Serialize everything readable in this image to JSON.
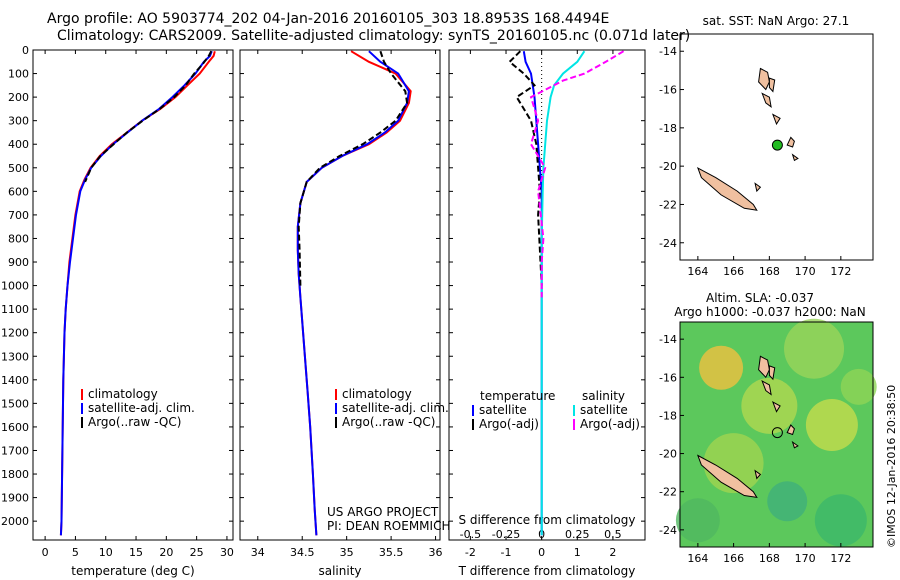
{
  "header": {
    "line1": "Argo profile: AO 5903774_202 04-Jan-2016 20160105_303 18.8953S 168.4494E",
    "line2": "Climatology: CARS2009. Satellite-adjusted climatology: synTS_20160105.nc (0.071d later)"
  },
  "stamp": "©IMOS 12-Jan-2016 20:38:50",
  "colors": {
    "climatology": "#ff0000",
    "satellite": "#0000ff",
    "argo": "#000000",
    "sat_salinity": "#00e5e5",
    "argo_adj": "#ff00ff",
    "land": "#f0c0a0",
    "float": "#22bb22"
  },
  "depth_ticks": [
    "0",
    "100",
    "200",
    "300",
    "400",
    "500",
    "600",
    "700",
    "800",
    "900",
    "1000",
    "1100",
    "1200",
    "1300",
    "1400",
    "1500",
    "1600",
    "1700",
    "1800",
    "1900",
    "2000"
  ],
  "chart_data": [
    {
      "type": "line",
      "xlabel": "temperature (deg C)",
      "xlim": [
        -2,
        31
      ],
      "ylim": [
        2080,
        0
      ],
      "xticks": [
        "0",
        "5",
        "10",
        "15",
        "20",
        "25",
        "30"
      ],
      "legend": [
        "climatology",
        "satellite-adj. clim.",
        "Argo(..raw -QC)"
      ],
      "series": [
        {
          "name": "climatology",
          "x": [
            28.0,
            27.8,
            27.0,
            25.5,
            23.5,
            21.5,
            19.0,
            16.0,
            13.5,
            11.0,
            9.0,
            7.5,
            6.5,
            5.7,
            5.0,
            4.5,
            4.0,
            3.7,
            3.4,
            3.2,
            3.0,
            2.9,
            2.8,
            2.7,
            2.6
          ],
          "y": [
            5,
            25,
            50,
            100,
            150,
            200,
            250,
            300,
            350,
            400,
            450,
            500,
            550,
            600,
            700,
            800,
            900,
            1000,
            1100,
            1200,
            1400,
            1600,
            1800,
            2000,
            2060
          ]
        },
        {
          "name": "satellite-adj. clim.",
          "x": [
            27.5,
            27.2,
            26.2,
            24.8,
            23.0,
            21.0,
            18.8,
            16.0,
            13.6,
            11.2,
            9.2,
            7.6,
            6.6,
            5.8,
            5.1,
            4.6,
            4.1,
            3.7,
            3.4,
            3.2,
            3.0,
            2.9,
            2.8,
            2.7,
            2.6
          ],
          "y": [
            5,
            25,
            50,
            100,
            150,
            200,
            250,
            300,
            350,
            400,
            450,
            500,
            550,
            600,
            700,
            800,
            900,
            1000,
            1100,
            1200,
            1400,
            1600,
            1800,
            2000,
            2060
          ]
        },
        {
          "name": "Argo(..raw -QC)",
          "x": [
            27.4,
            27.0,
            26.0,
            24.6,
            23.2,
            21.3,
            18.9,
            16.1,
            13.5,
            11.3,
            9.1,
            7.6,
            6.6
          ],
          "y": [
            5,
            25,
            60,
            100,
            150,
            200,
            250,
            300,
            350,
            400,
            450,
            500,
            560
          ]
        }
      ]
    },
    {
      "type": "line",
      "xlabel": "salinity",
      "xlim": [
        33.8,
        36.05
      ],
      "ylim": [
        2080,
        0
      ],
      "xticks": [
        "34",
        "34.5",
        "35",
        "35.5",
        "36"
      ],
      "legend": [
        "climatology",
        "satellite-adj. clim.",
        "Argo(..raw -QC)"
      ],
      "series": [
        {
          "name": "climatology",
          "x": [
            35.05,
            35.25,
            35.55,
            35.72,
            35.7,
            35.6,
            35.45,
            35.25,
            34.95,
            34.72,
            34.55,
            34.48,
            34.45,
            34.45,
            34.46,
            34.48,
            34.5,
            34.53,
            34.56,
            34.59,
            34.62,
            34.64,
            34.66
          ],
          "y": [
            5,
            50,
            100,
            175,
            225,
            300,
            350,
            400,
            450,
            500,
            560,
            650,
            750,
            850,
            950,
            1050,
            1150,
            1300,
            1450,
            1600,
            1800,
            1950,
            2060
          ]
        },
        {
          "name": "satellite-adj. clim.",
          "x": [
            35.25,
            35.38,
            35.58,
            35.7,
            35.68,
            35.58,
            35.43,
            35.23,
            34.95,
            34.72,
            34.55,
            34.48,
            34.45,
            34.45,
            34.46,
            34.48,
            34.5,
            34.53,
            34.56,
            34.59,
            34.62,
            34.64,
            34.66
          ],
          "y": [
            5,
            50,
            100,
            175,
            225,
            300,
            350,
            400,
            450,
            500,
            560,
            650,
            750,
            850,
            950,
            1050,
            1150,
            1300,
            1450,
            1600,
            1800,
            1950,
            2060
          ]
        },
        {
          "name": "Argo(..raw -QC)",
          "x": [
            35.38,
            35.42,
            35.5,
            35.66,
            35.68,
            35.55,
            35.38,
            35.18,
            34.92,
            34.7,
            34.55,
            34.48,
            34.46,
            34.47,
            34.48
          ],
          "y": [
            5,
            50,
            100,
            175,
            225,
            300,
            350,
            400,
            450,
            500,
            560,
            650,
            750,
            850,
            1000
          ]
        }
      ]
    },
    {
      "type": "line",
      "xlabel": "T difference from climatology",
      "xlabel2": "S difference from climatology",
      "xlim": [
        -2.6,
        2.9
      ],
      "ylim": [
        2080,
        0
      ],
      "xticks": [
        "-2",
        "-1",
        "0",
        "1",
        "2"
      ],
      "xticks2": [
        "-0.5",
        "-0.25",
        "0",
        "0.25",
        "0.5"
      ],
      "legend_headers": [
        "temperature",
        "salinity"
      ],
      "legend": [
        "satellite",
        "Argo(-adj)",
        "satellite",
        "Argo(-adj)"
      ],
      "series": [
        {
          "name": "satellite",
          "x": [
            -0.5,
            -0.45,
            -0.3,
            -0.2,
            -0.15,
            -0.1,
            -0.05,
            0,
            0,
            0,
            0,
            0
          ],
          "y": [
            5,
            50,
            100,
            200,
            300,
            400,
            500,
            600,
            800,
            1000,
            1500,
            2060
          ]
        },
        {
          "name": "Argo(-adj)",
          "x": [
            -0.6,
            -0.9,
            -0.5,
            -0.2,
            -0.7,
            -0.3,
            -0.15,
            -0.1,
            -0.05,
            -0.1,
            -0.05,
            0.0
          ],
          "y": [
            5,
            50,
            100,
            150,
            200,
            300,
            400,
            500,
            600,
            700,
            850,
            1000
          ]
        },
        {
          "name": "satellite",
          "x": [
            1.2,
            1.0,
            0.6,
            0.35,
            0.25,
            0.15,
            0.1,
            0.05,
            0.03,
            0.0,
            0.0,
            0.0
          ],
          "y": [
            5,
            50,
            100,
            150,
            200,
            300,
            400,
            500,
            600,
            800,
            1500,
            2060
          ]
        },
        {
          "name": "Argo(-adj)",
          "x": [
            2.3,
            1.8,
            1.2,
            0.6,
            -0.3,
            -0.1,
            -0.3,
            0.1,
            -0.1,
            0.05,
            0.0,
            0.0
          ],
          "y": [
            5,
            50,
            100,
            130,
            200,
            300,
            400,
            500,
            600,
            800,
            900,
            1050
          ]
        }
      ]
    }
  ],
  "maps": {
    "top": {
      "title": "sat. SST: NaN Argo: 27.1",
      "xticks": [
        "164",
        "166",
        "168",
        "170",
        "172"
      ],
      "yticks": [
        "-14",
        "-16",
        "-18",
        "-20",
        "-22",
        "-24"
      ]
    },
    "bottom": {
      "title1": "Altim. SLA: -0.037",
      "title2": "Argo h1000: -0.037 h2000: NaN",
      "xticks": [
        "164",
        "166",
        "168",
        "170",
        "172"
      ],
      "yticks": [
        "-14",
        "-16",
        "-18",
        "-20",
        "-22",
        "-24"
      ]
    }
  },
  "credits": {
    "line1": "US ARGO PROJECT",
    "line2": "PI: DEAN ROEMMICH"
  }
}
